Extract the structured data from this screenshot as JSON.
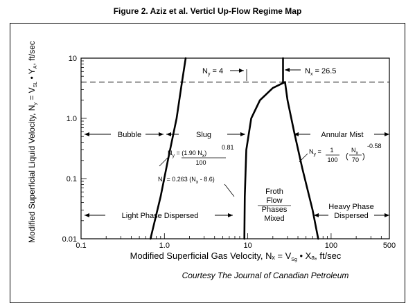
{
  "title": "Figure 2. Aziz et al. Verticl Up-Flow Regime Map",
  "courtesy": "Courtesy The Journal of Canadian Petroleum",
  "chart_data": {
    "type": "line",
    "xlabel": "Modified Superficial Gas Velocity, Nₓ = V",
    "xlabel_sub": "Sg",
    "xlabel_tail": " • Xₐ, ft/sec",
    "ylabel": "Modified Superficial Liquid Velocity, N",
    "ylabel_sub": "y",
    "ylabel_tail": " = V",
    "ylabel_sub2": "SL",
    "ylabel_tail2": " • Y",
    "ylabel_sub3": "A",
    "ylabel_tail3": ", ft/sec",
    "xscale": "log",
    "yscale": "log",
    "xlim": [
      0.1,
      500
    ],
    "ylim": [
      0.01,
      10
    ],
    "xticks": [
      {
        "v": 0.1,
        "label": "0.1"
      },
      {
        "v": 1,
        "label": "1.0"
      },
      {
        "v": 10,
        "label": "10"
      },
      {
        "v": 100,
        "label": "100"
      },
      {
        "v": 500,
        "label": "500"
      }
    ],
    "yticks": [
      {
        "v": 0.01,
        "label": "0.01"
      },
      {
        "v": 0.1,
        "label": "0.1"
      },
      {
        "v": 1,
        "label": "1.0"
      },
      {
        "v": 10,
        "label": "10"
      }
    ],
    "boundaries": [
      {
        "name": "bubble-slug",
        "points": [
          [
            0.68,
            0.01
          ],
          [
            0.9,
            0.05
          ],
          [
            1.1,
            0.2
          ],
          [
            1.4,
            1.0
          ],
          [
            1.6,
            3.5
          ],
          [
            1.8,
            10
          ]
        ]
      },
      {
        "name": "slug-froth",
        "points": [
          [
            9.1,
            0.01
          ],
          [
            9.2,
            0.05
          ],
          [
            9.6,
            0.3
          ],
          [
            11,
            1.0
          ],
          [
            14,
            2.0
          ],
          [
            20,
            3.2
          ],
          [
            28,
            4.0
          ]
        ]
      },
      {
        "name": "froth-annular",
        "points": [
          [
            28,
            4.0
          ],
          [
            30,
            2.0
          ],
          [
            36,
            0.6
          ],
          [
            45,
            0.15
          ],
          [
            60,
            0.03
          ],
          [
            70,
            0.01
          ]
        ]
      },
      {
        "name": "annular-vertical",
        "points": [
          [
            26.5,
            4.0
          ],
          [
            26.5,
            10
          ]
        ]
      }
    ],
    "dashed_line_y": 4,
    "annotations": {
      "ny4": "N",
      "ny4_sub": "y",
      "ny4_tail": " = 4",
      "nx265": "N",
      "nx265_sub": "x",
      "nx265_tail": " = 26.5",
      "eq1_lhs": "N",
      "eq1_lhs_sub": "y",
      "eq1_rhs": " = (1.90 N",
      "eq1_rhs_sub": "x",
      "eq1_rhs_tail": ")",
      "eq1_exp": "0.81",
      "eq1_den": "100",
      "eq2": "N",
      "eq2_sub": "y",
      "eq2_tail": " = 0.263 (N",
      "eq2_sub2": "x",
      "eq2_tail2": " - 8.6)",
      "eq3_lhs": "N",
      "eq3_lhs_sub": "y",
      "eq3_num": "1",
      "eq3_den": "100",
      "eq3_inner_num": "N",
      "eq3_inner_num_sub": "x",
      "eq3_inner_den": "70",
      "eq3_exp": "-0.58"
    },
    "regions": {
      "bubble": "Bubble",
      "slug": "Slug",
      "annular": "Annular Mist",
      "froth": "Froth",
      "flow": "Flow",
      "phases": "Phases",
      "mixed": "Mixed",
      "light": "Light Phase Dispersed",
      "heavy1": "Heavy Phase",
      "heavy2": "Dispersed"
    }
  }
}
